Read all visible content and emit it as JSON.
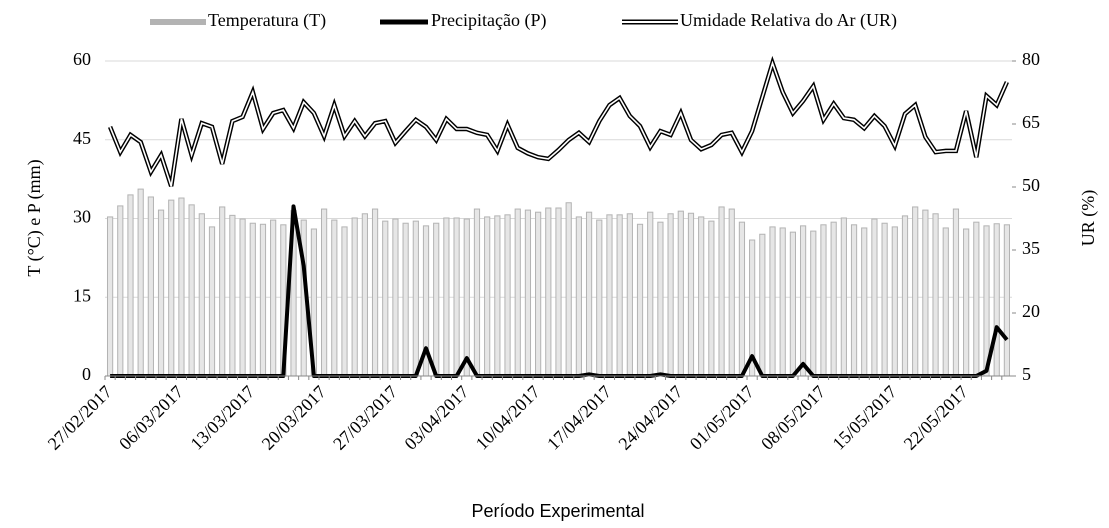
{
  "chart_data": {
    "type": "combo",
    "xlabel": "Período Experimental",
    "ylabel": "T (°C) e P (mm)",
    "y2label": "UR (%)",
    "ylim": [
      0,
      60
    ],
    "yticks": [
      0,
      15,
      30,
      45,
      60
    ],
    "y2lim": [
      5,
      80
    ],
    "y2ticks": [
      5,
      20,
      35,
      50,
      65,
      80
    ],
    "grid": true,
    "legend": "top",
    "categories": [
      "27/02/2017",
      null,
      null,
      null,
      null,
      null,
      null,
      "06/03/2017",
      null,
      null,
      null,
      null,
      null,
      null,
      "13/03/2017",
      null,
      null,
      null,
      null,
      null,
      null,
      "20/03/2017",
      null,
      null,
      null,
      null,
      null,
      null,
      "27/03/2017",
      null,
      null,
      null,
      null,
      null,
      null,
      "03/04/2017",
      null,
      null,
      null,
      null,
      null,
      null,
      "10/04/2017",
      null,
      null,
      null,
      null,
      null,
      null,
      "17/04/2017",
      null,
      null,
      null,
      null,
      null,
      null,
      "24/04/2017",
      null,
      null,
      null,
      null,
      null,
      null,
      "01/05/2017",
      null,
      null,
      null,
      null,
      null,
      null,
      "08/05/2017",
      null,
      null,
      null,
      null,
      null,
      null,
      "15/05/2017",
      null,
      null,
      null,
      null,
      null,
      null,
      "22/05/2017",
      null,
      null,
      null,
      null
    ],
    "series": [
      {
        "name": "Temperatura (T)",
        "type": "bar",
        "color": "#b3b3b3",
        "values": [
          30.3,
          32.4,
          34.5,
          35.6,
          34.1,
          31.6,
          33.5,
          33.9,
          32.6,
          30.9,
          28.4,
          32.2,
          30.6,
          29.9,
          29.1,
          28.9,
          29.7,
          28.8,
          31.5,
          29.7,
          28.0,
          31.8,
          29.7,
          28.4,
          30.1,
          30.9,
          31.8,
          29.5,
          29.9,
          29.1,
          29.5,
          28.6,
          29.1,
          30.1,
          30.1,
          29.9,
          31.8,
          30.3,
          30.5,
          30.7,
          31.8,
          31.6,
          31.2,
          32.0,
          32.0,
          33.0,
          30.3,
          31.2,
          29.7,
          30.7,
          30.7,
          30.9,
          28.9,
          31.2,
          29.3,
          30.9,
          31.4,
          31.0,
          30.3,
          29.5,
          32.2,
          31.8,
          29.3,
          25.9,
          27.0,
          28.4,
          28.2,
          27.4,
          28.6,
          27.6,
          28.8,
          29.3,
          30.1,
          28.8,
          28.2,
          29.9,
          29.1,
          28.4,
          30.5,
          32.2,
          31.6,
          30.9,
          28.2,
          31.8,
          28.0,
          29.3,
          28.6,
          29.0,
          28.8
        ]
      },
      {
        "name": "Precipitação (P)",
        "type": "line",
        "color": "#000000",
        "values": [
          0,
          0,
          0,
          0,
          0,
          0,
          0,
          0,
          0,
          0,
          0,
          0,
          0,
          0,
          0,
          0,
          0,
          0,
          32.3,
          21,
          0,
          0,
          0,
          0,
          0,
          0,
          0,
          0,
          0,
          0,
          0,
          5.3,
          0,
          0,
          0,
          3.4,
          0,
          0,
          0,
          0,
          0,
          0,
          0,
          0,
          0,
          0,
          0,
          0.3,
          0,
          0,
          0,
          0,
          0,
          0,
          0.3,
          0,
          0,
          0,
          0,
          0,
          0,
          0,
          0,
          3.8,
          0,
          0,
          0,
          0,
          2.3,
          0,
          0,
          0,
          0,
          0,
          0,
          0,
          0,
          0,
          0,
          0,
          0,
          0,
          0,
          0,
          0,
          0,
          1,
          9.3,
          6.9
        ]
      },
      {
        "name": "Umidade Relativa do Ar (UR)",
        "type": "double-line",
        "color": "#000000",
        "axis": "y2",
        "values": [
          64.3,
          58.3,
          62.4,
          60.7,
          53.6,
          57.6,
          50.2,
          66.2,
          57.6,
          65.2,
          64.3,
          55.5,
          65.7,
          66.7,
          72.6,
          63.8,
          67.6,
          68.3,
          64,
          70.2,
          67.6,
          62.1,
          69.5,
          62.1,
          65.7,
          62.1,
          65.2,
          65.7,
          60.5,
          63.3,
          66.0,
          64.3,
          61.2,
          66.2,
          63.8,
          63.8,
          62.9,
          62.4,
          58.6,
          64.8,
          59.3,
          58.0,
          57.1,
          56.7,
          58.8,
          61.2,
          62.9,
          60.7,
          65.7,
          69.5,
          71.2,
          66.9,
          64.5,
          59.5,
          63.3,
          62.4,
          67.6,
          61.2,
          59,
          60,
          62.4,
          62.9,
          58.3,
          63.3,
          71.4,
          79.5,
          72.6,
          67.6,
          70.5,
          74,
          66,
          69.8,
          66.4,
          66,
          64,
          66.9,
          64.5,
          59.8,
          67.4,
          69.5,
          61.9,
          58.3,
          58.6,
          58.6,
          68.1,
          57.1,
          71.7,
          69.5,
          75
        ]
      }
    ]
  }
}
